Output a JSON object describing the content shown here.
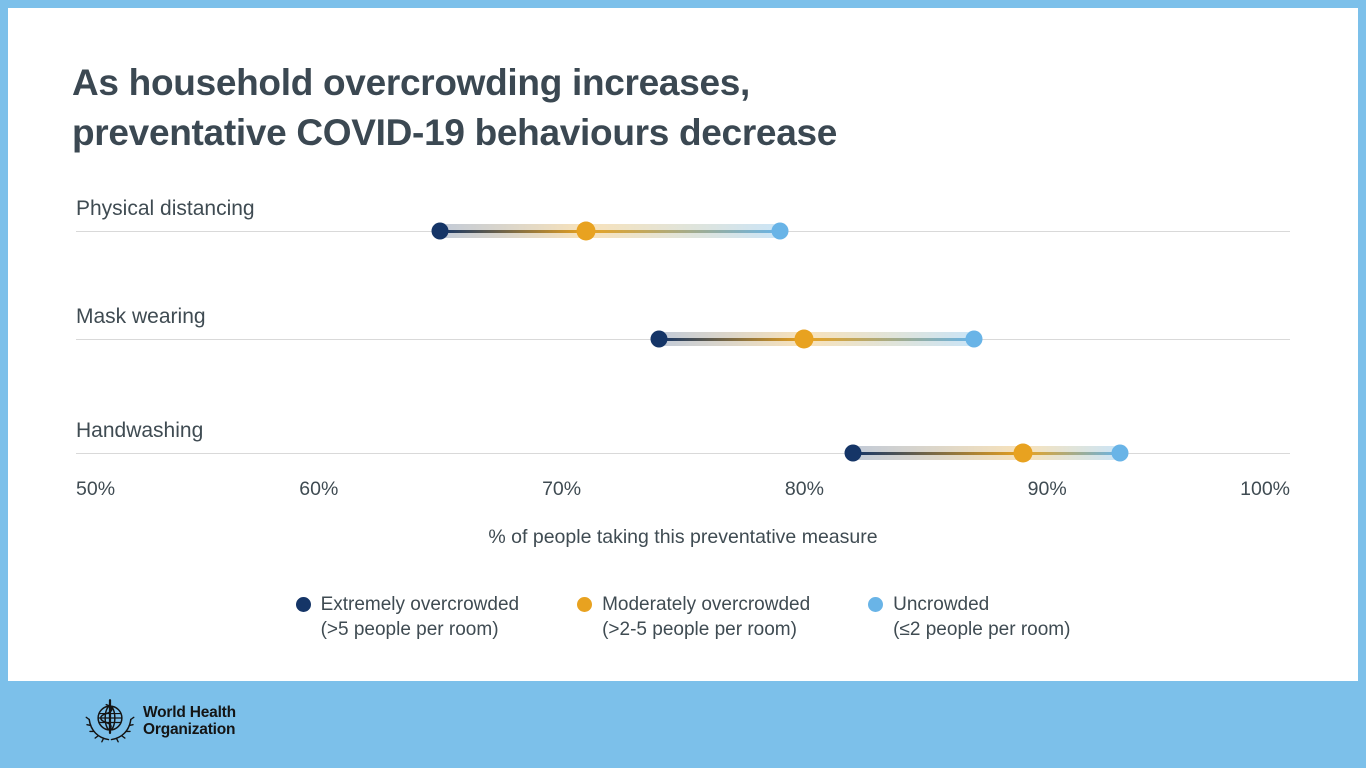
{
  "colors": {
    "frame": "#7cc0ea",
    "card": "#ffffff",
    "title": "#3b4852",
    "text": "#3f4b52",
    "gridline": "#d9d9d9",
    "navy": "#153567",
    "orange": "#e8a220",
    "light_blue": "#69b4e7"
  },
  "title": {
    "line1": "As household overcrowding increases,",
    "line2": "preventative COVID-19 behaviours decrease"
  },
  "chart_data": {
    "type": "dumbbell",
    "categories": [
      "Physical distancing",
      "Mask wearing",
      "Handwashing"
    ],
    "series": [
      {
        "name": "Extremely overcrowded (>5 people per room)",
        "key": "extremely-overcrowded",
        "color": "#153567",
        "values": [
          65,
          74,
          82
        ]
      },
      {
        "name": "Moderately overcrowded (>2-5 people per room)",
        "key": "moderately-overcrowded",
        "color": "#e8a220",
        "values": [
          71,
          80,
          89
        ]
      },
      {
        "name": "Uncrowded (≤2 people per room)",
        "key": "uncrowded",
        "color": "#69b4e7",
        "values": [
          79,
          87,
          93
        ]
      }
    ],
    "xlim": [
      50,
      100
    ],
    "x_ticks": [
      {
        "value": 50,
        "label": "50%"
      },
      {
        "value": 60,
        "label": "60%"
      },
      {
        "value": 70,
        "label": "70%"
      },
      {
        "value": 80,
        "label": "80%"
      },
      {
        "value": 90,
        "label": "90%"
      },
      {
        "value": 100,
        "label": "100%"
      }
    ],
    "xlabel": "% of people taking this preventative measure",
    "grid": "one horizontal baseline per category row",
    "legend_position": "bottom"
  },
  "legend": {
    "items": [
      {
        "label": "Extremely overcrowded",
        "sublabel": "(>5 people per room)",
        "color": "#153567"
      },
      {
        "label": "Moderately overcrowded",
        "sublabel": "(>2-5 people per room)",
        "color": "#e8a220"
      },
      {
        "label": "Uncrowded",
        "sublabel": "(≤2 people per room)",
        "color": "#69b4e7"
      }
    ]
  },
  "footer": {
    "org_name_line1": "World Health",
    "org_name_line2": "Organization"
  }
}
